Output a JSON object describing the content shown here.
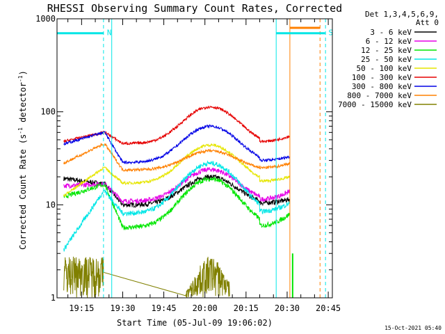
{
  "chart_data": {
    "type": "line",
    "title": "RHESSI Observing Summary Count Rates, Corrected",
    "xlabel": "Start Time (05-Jul-09 19:06:02)",
    "ylabel": "Corrected Count Rate (s",
    "ylabel_sup1": "-1",
    "ylabel_mid": " detector",
    "ylabel_sup2": "-1",
    "ylabel_end": ")",
    "yscale": "log",
    "ylim": [
      1,
      1000
    ],
    "y_ticks": [
      {
        "value": 1,
        "label": "1"
      },
      {
        "value": 10,
        "label": "10"
      },
      {
        "value": 100,
        "label": "100"
      },
      {
        "value": 1000,
        "label": "1000"
      }
    ],
    "xlim": [
      "19:06:02",
      "20:46:30"
    ],
    "x_ticks": [
      "19:15",
      "19:30",
      "19:45",
      "20:00",
      "20:15",
      "20:30",
      "20:45"
    ],
    "legend_position": "right",
    "legend_header": [
      "Det 1,3,4,5,6,9,",
      "Att 0"
    ],
    "series": [
      {
        "name": "3 - 6 keV",
        "color": "#000000",
        "start": [
          19.2,
          16.8
        ],
        "end": [
          10.5,
          11.5
        ],
        "peak": 20
      },
      {
        "name": "6 - 12 keV",
        "color": "#e600e6",
        "start": [
          16.0,
          16.8
        ],
        "end": [
          11.5,
          14.0
        ],
        "peak": 24
      },
      {
        "name": "12 - 25 keV",
        "color": "#00e600",
        "start": [
          12.2,
          16.5
        ],
        "end": [
          6.0,
          8.0
        ],
        "peak": 19
      },
      {
        "name": "25 - 50 keV",
        "color": "#00e6e6",
        "start": [
          3.3,
          14.0
        ],
        "end": [
          8.5,
          10.5
        ],
        "peak": 28
      },
      {
        "name": "50 - 100 keV",
        "color": "#e6e600",
        "start": [
          12.5,
          25.0
        ],
        "end": [
          18.0,
          20.0
        ],
        "peak": 44
      },
      {
        "name": "100 - 300 keV",
        "color": "#e60000",
        "start": [
          48.0,
          60.0
        ],
        "end": [
          48.0,
          55.0
        ],
        "peak": 113
      },
      {
        "name": "300 - 800 keV",
        "color": "#0000e6",
        "start": [
          45.0,
          60.0
        ],
        "end": [
          30.0,
          33.0
        ],
        "peak": 70
      },
      {
        "name": "800 - 7000 keV",
        "color": "#ff8000",
        "start": [
          28.0,
          45.0
        ],
        "end": [
          25.0,
          28.0
        ],
        "peak": 38
      },
      {
        "name": "7000 - 15000 keV",
        "color": "#808000",
        "start": [
          1.2,
          2.8
        ],
        "end": [
          1.0,
          1.0
        ],
        "peak": 2.8
      }
    ],
    "flags": [
      {
        "label": "N",
        "color": "#00e6e6",
        "from": "19:06:02",
        "to": "19:23:00",
        "level": 700
      },
      {
        "label": "S",
        "color": "#00e6e6",
        "from": "20:26:00",
        "to": "20:43:50",
        "level": 700
      },
      {
        "label": "",
        "color": "#ff8000",
        "from": "20:31:00",
        "to": "20:42:00",
        "level": 800
      }
    ],
    "solid_vlines": [
      {
        "time": "19:26:00",
        "color": "#00e6e6"
      },
      {
        "time": "20:26:00",
        "color": "#00e6e6"
      },
      {
        "time": "20:31:00",
        "color": "#ff8000"
      }
    ],
    "dashed_vlines": [
      {
        "time": "19:23:00",
        "color": "#00e6e6"
      },
      {
        "time": "20:42:00",
        "color": "#ff8000"
      },
      {
        "time": "20:44:00",
        "color": "#00e6e6"
      }
    ],
    "saa_trace": {
      "color": "#00e600",
      "from": "20:31:30",
      "to": "20:32:30",
      "max": 3.0
    },
    "timestamp": "15-Oct-2021 05:40"
  }
}
